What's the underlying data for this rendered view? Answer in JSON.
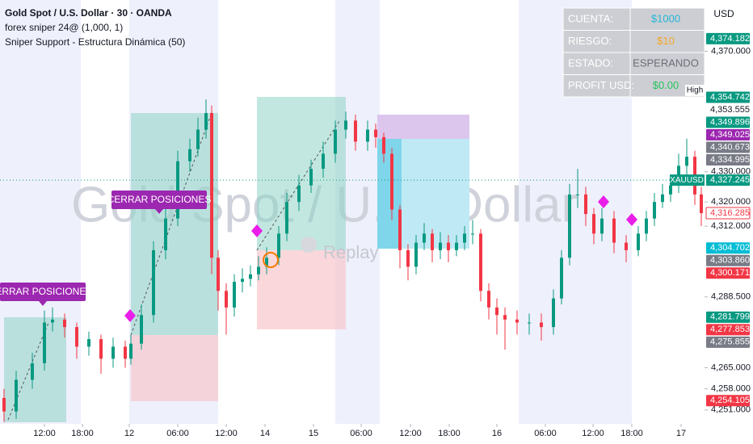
{
  "chart_data": {
    "type": "candlestick",
    "title": "Gold Spot / U.S. Dollar · 30 · OANDA",
    "indicators": [
      "forex sniper 24@ (1,000, 1)",
      "Sniper Support - Estructura Dinámica (50)"
    ],
    "watermark": "Gold Spot / U.S. Dollar",
    "replay": "Replay",
    "currency": "USD",
    "symbol": "XAUUSD",
    "high_label": "High",
    "annotations": [
      "CERRAR POSICIONES",
      "CERRAR POSICIONES"
    ],
    "up_color": "#089981",
    "down_color": "#f23645",
    "x": [
      1,
      4,
      8,
      11,
      13,
      16,
      19,
      22,
      25,
      28,
      31,
      32.4,
      35,
      38,
      41,
      44,
      47,
      49,
      51,
      52.4,
      54,
      56,
      58,
      60,
      62,
      64,
      66,
      69,
      71,
      74,
      77,
      80,
      83,
      85.6,
      88,
      91,
      93,
      95,
      97,
      99,
      101,
      103,
      105,
      107,
      109,
      111,
      113,
      115,
      117,
      119,
      121,
      123,
      125,
      128,
      131,
      134,
      137,
      139,
      141,
      143,
      145,
      147,
      149,
      152,
      155,
      158,
      160,
      162,
      164,
      166,
      168,
      170,
      172,
      173.6
    ],
    "open": [
      4255,
      4250.5,
      4261,
      4266.5,
      4280,
      4281,
      4278.5,
      4272,
      4274.5,
      4268,
      4272,
      4268,
      4273,
      4282.5,
      4304,
      4314.5,
      4333.5,
      4337.5,
      4344,
      4349.5,
      4301.5,
      4290.5,
      4285,
      4293.5,
      4294.5,
      4296,
      4298.5,
      4301.5,
      4309.5,
      4320,
      4325.5,
      4331,
      4336,
      4344,
      4347,
      4340,
      4344,
      4341.5,
      4336,
      4317.5,
      4304,
      4298.5,
      4306.5,
      4309.5,
      4304,
      4306.5,
      4304,
      4306.5,
      4309.5,
      4309.5,
      4290.5,
      4285,
      4282.5,
      4281,
      4280,
      4280,
      4278.5,
      4288,
      4301.5,
      4322.5,
      4322.5,
      4316,
      4309.5,
      4314.5,
      4306.5,
      4304,
      4309.5,
      4314.5,
      4320,
      4322.5,
      4325.5,
      4332,
      4335,
      4322.5
    ],
    "high": [
      4258,
      4264,
      4270,
      4284,
      4285,
      4283,
      4280,
      4277,
      4276,
      4275,
      4274,
      4276,
      4286,
      4307,
      4318,
      4337,
      4341,
      4348,
      4354,
      4352,
      4304,
      4293,
      4296,
      4298,
      4299,
      4302,
      4305,
      4312,
      4323,
      4329,
      4334,
      4340,
      4347,
      4350,
      4349,
      4347,
      4346,
      4343,
      4338,
      4319,
      4306,
      4309,
      4313,
      4311,
      4310,
      4309,
      4309,
      4312,
      4314,
      4311,
      4293,
      4288,
      4285,
      4284,
      4283,
      4283,
      4291,
      4304,
      4326,
      4331,
      4325,
      4318,
      4318,
      4317,
      4309,
      4312,
      4317,
      4323,
      4326,
      4329,
      4336,
      4341,
      4337,
      4325
    ],
    "low": [
      4247,
      4248,
      4258,
      4264,
      4277,
      4275,
      4268,
      4269,
      4263,
      4265,
      4265,
      4266,
      4271,
      4280,
      4301,
      4312,
      4330,
      4335,
      4341,
      4296,
      4284,
      4276,
      4282,
      4290,
      4292,
      4294,
      4296,
      4299,
      4307,
      4317,
      4323,
      4328,
      4333,
      4341,
      4337,
      4337,
      4338,
      4333,
      4314,
      4298,
      4294,
      4296,
      4304,
      4300,
      4301,
      4300,
      4302,
      4304,
      4306,
      4287,
      4281,
      4276,
      4271,
      4276,
      4276,
      4274,
      4276,
      4286,
      4299,
      4318,
      4312,
      4306,
      4307,
      4303,
      4300,
      4302,
      4307,
      4312,
      4318,
      4320,
      4323,
      4329,
      4319,
      4312
    ],
    "close": [
      4250.5,
      4261,
      4266.5,
      4280,
      4281,
      4278.5,
      4272,
      4274.5,
      4268,
      4272,
      4268,
      4273,
      4282.5,
      4304,
      4314.5,
      4333.5,
      4337.5,
      4344,
      4349.5,
      4301.5,
      4290.5,
      4285,
      4293.5,
      4294.5,
      4296,
      4298.5,
      4301.5,
      4309.5,
      4320,
      4325.5,
      4331,
      4336,
      4344,
      4347,
      4340,
      4344,
      4341.5,
      4336,
      4317.5,
      4304,
      4298.5,
      4306.5,
      4309.5,
      4304,
      4306.5,
      4304,
      4306.5,
      4309.5,
      4309.5,
      4290.5,
      4285,
      4282.5,
      4281,
      4280,
      4280,
      4278.5,
      4288,
      4301.5,
      4322.5,
      4322.5,
      4316,
      4309.5,
      4314.5,
      4306.5,
      4304,
      4309.5,
      4314.5,
      4320,
      4322.5,
      4325.5,
      4332,
      4335,
      4322.5,
      4316.3
    ],
    "xlim": [
      0,
      174
    ],
    "xticks": [
      {
        "value": 11,
        "label": "12:00"
      },
      {
        "value": 20.4,
        "label": "18:00"
      },
      {
        "value": 32,
        "label": "12"
      },
      {
        "value": 44,
        "label": "06:00"
      },
      {
        "value": 56,
        "label": "12:00"
      },
      {
        "value": 65.6,
        "label": "14"
      },
      {
        "value": 77.6,
        "label": "15"
      },
      {
        "value": 89.4,
        "label": "06:00"
      },
      {
        "value": 101.6,
        "label": "12:00"
      },
      {
        "value": 111.2,
        "label": "18:00"
      },
      {
        "value": 123,
        "label": "16"
      },
      {
        "value": 135,
        "label": "06:00"
      },
      {
        "value": 146.8,
        "label": "12:00"
      },
      {
        "value": 156.4,
        "label": "18:00"
      },
      {
        "value": 168.6,
        "label": "17"
      }
    ],
    "ylim": [
      4246.4,
      4387
    ],
    "yticks": [
      {
        "value": 4370,
        "label": "4,370.000"
      },
      {
        "value": 4330,
        "label": "4,330.000"
      },
      {
        "value": 4320,
        "label": "4,320.000"
      },
      {
        "value": 4312,
        "label": "4,312.000"
      },
      {
        "value": 4288.5,
        "label": "4,288.500"
      },
      {
        "value": 4265,
        "label": "4,265.000"
      },
      {
        "value": 4258,
        "label": "4,258.000"
      },
      {
        "value": 4251,
        "label": "4,251.000"
      }
    ],
    "price_labels": [
      {
        "value": 4374.182,
        "label": "4,374.182",
        "color": "#089981"
      },
      {
        "value": 4354.742,
        "label": "4,354.742",
        "color": "#089981"
      },
      {
        "value": 4353.555,
        "label": "4,353.555",
        "color": "#ffffff"
      },
      {
        "value": 4349.896,
        "label": "4,349.896",
        "color": "#089981"
      },
      {
        "value": 4349.025,
        "label": "4,349.025",
        "color": "#9c27b0"
      },
      {
        "value": 4340.673,
        "label": "4,340.673",
        "color": "#787b86"
      },
      {
        "value": 4334.995,
        "label": "4,334.995",
        "color": "#787b86"
      },
      {
        "value": 4327.245,
        "label": "4,327.245",
        "color": "#089981"
      },
      {
        "value": 4316.285,
        "label": "4,316.285",
        "color": "#f23645",
        "outline": true
      },
      {
        "value": 4304.702,
        "label": "4,304.702",
        "color": "#00bcd4"
      },
      {
        "value": 4303.86,
        "label": "4,303.860",
        "color": "#787b86"
      },
      {
        "value": 4300.171,
        "label": "4,300.171",
        "color": "#f23645"
      },
      {
        "value": 4281.799,
        "label": "4,281.799",
        "color": "#089981"
      },
      {
        "value": 4277.853,
        "label": "4,277.853",
        "color": "#f23645"
      },
      {
        "value": 4275.855,
        "label": "4,275.855",
        "color": "#787b86"
      },
      {
        "value": 4254.105,
        "label": "4,254.105",
        "color": "#f23645"
      }
    ]
  },
  "panel": {
    "rows": [
      [
        "CUENTA:",
        "$1000"
      ],
      [
        "RIESGO:",
        "$10"
      ],
      [
        "ESTADO:",
        "ESPERANDO"
      ],
      [
        "PROFIT USD:",
        "$0.00"
      ]
    ]
  }
}
